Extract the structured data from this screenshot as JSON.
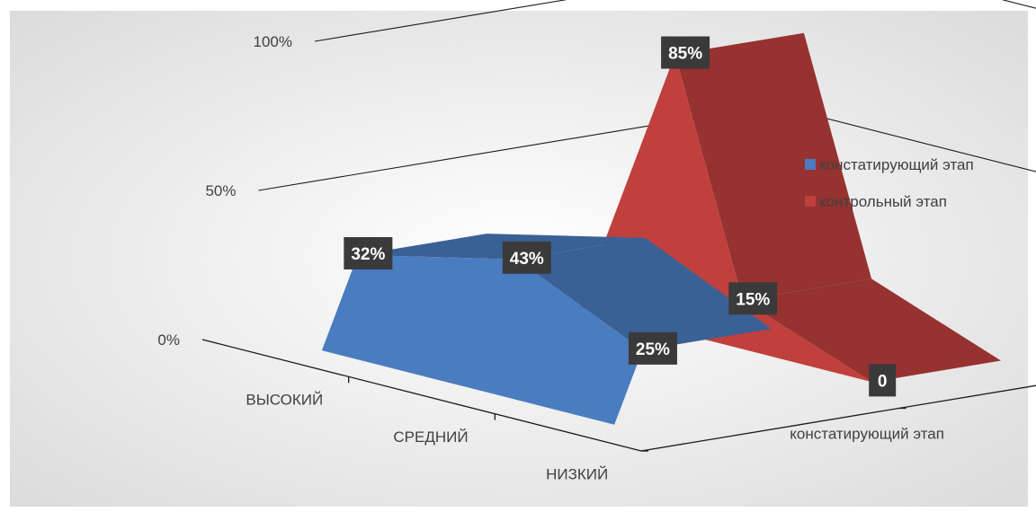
{
  "chart_data": {
    "type": "area",
    "style": "3d",
    "categories": [
      "ВЫСОКИЙ",
      "СРЕДНИЙ",
      "НИЗКИЙ"
    ],
    "series": [
      {
        "name": "констатирующий этап",
        "values": [
          32,
          43,
          25
        ],
        "labels": [
          "32%",
          "43%",
          "25%"
        ],
        "color": "#4a7cc0"
      },
      {
        "name": "контрольный этап",
        "values": [
          85,
          15,
          0
        ],
        "labels": [
          "85%",
          "15%",
          "0"
        ],
        "color": "#c0403d"
      }
    ],
    "y_ticks": [
      "0%",
      "50%",
      "100%"
    ],
    "ylim": [
      0,
      100
    ],
    "depth_labels": [
      "констатирующий этап",
      "контрольный этап"
    ],
    "legend_position": "right",
    "grid": true,
    "background": [
      "#ffffff",
      "#d9d9d9"
    ]
  }
}
